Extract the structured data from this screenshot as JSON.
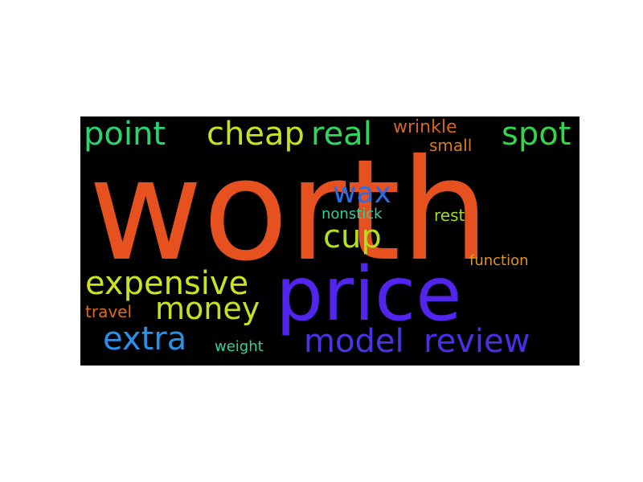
{
  "words": [
    {
      "text": "worth",
      "color": "#e6511f"
    },
    {
      "text": "price",
      "color": "#5225ec"
    },
    {
      "text": "point",
      "color": "#2bd46e"
    },
    {
      "text": "cheap",
      "color": "#c7e21f"
    },
    {
      "text": "real",
      "color": "#2fd85c"
    },
    {
      "text": "wrinkle",
      "color": "#d3661f"
    },
    {
      "text": "small",
      "color": "#d97d1c"
    },
    {
      "text": "spot",
      "color": "#35d44a"
    },
    {
      "text": "wax",
      "color": "#2a6ce8"
    },
    {
      "text": "cup",
      "color": "#b3e01d"
    },
    {
      "text": "nonstick",
      "color": "#2bd198"
    },
    {
      "text": "rest",
      "color": "#9ddc1f"
    },
    {
      "text": "function",
      "color": "#e0961c"
    },
    {
      "text": "expensive",
      "color": "#cde41d"
    },
    {
      "text": "money",
      "color": "#c8e01f"
    },
    {
      "text": "travel",
      "color": "#de6a1f"
    },
    {
      "text": "extra",
      "color": "#2a8fe6"
    },
    {
      "text": "weight",
      "color": "#2dd39d"
    },
    {
      "text": "model",
      "color": "#4a34e4"
    },
    {
      "text": "review",
      "color": "#4a2ee8"
    }
  ]
}
